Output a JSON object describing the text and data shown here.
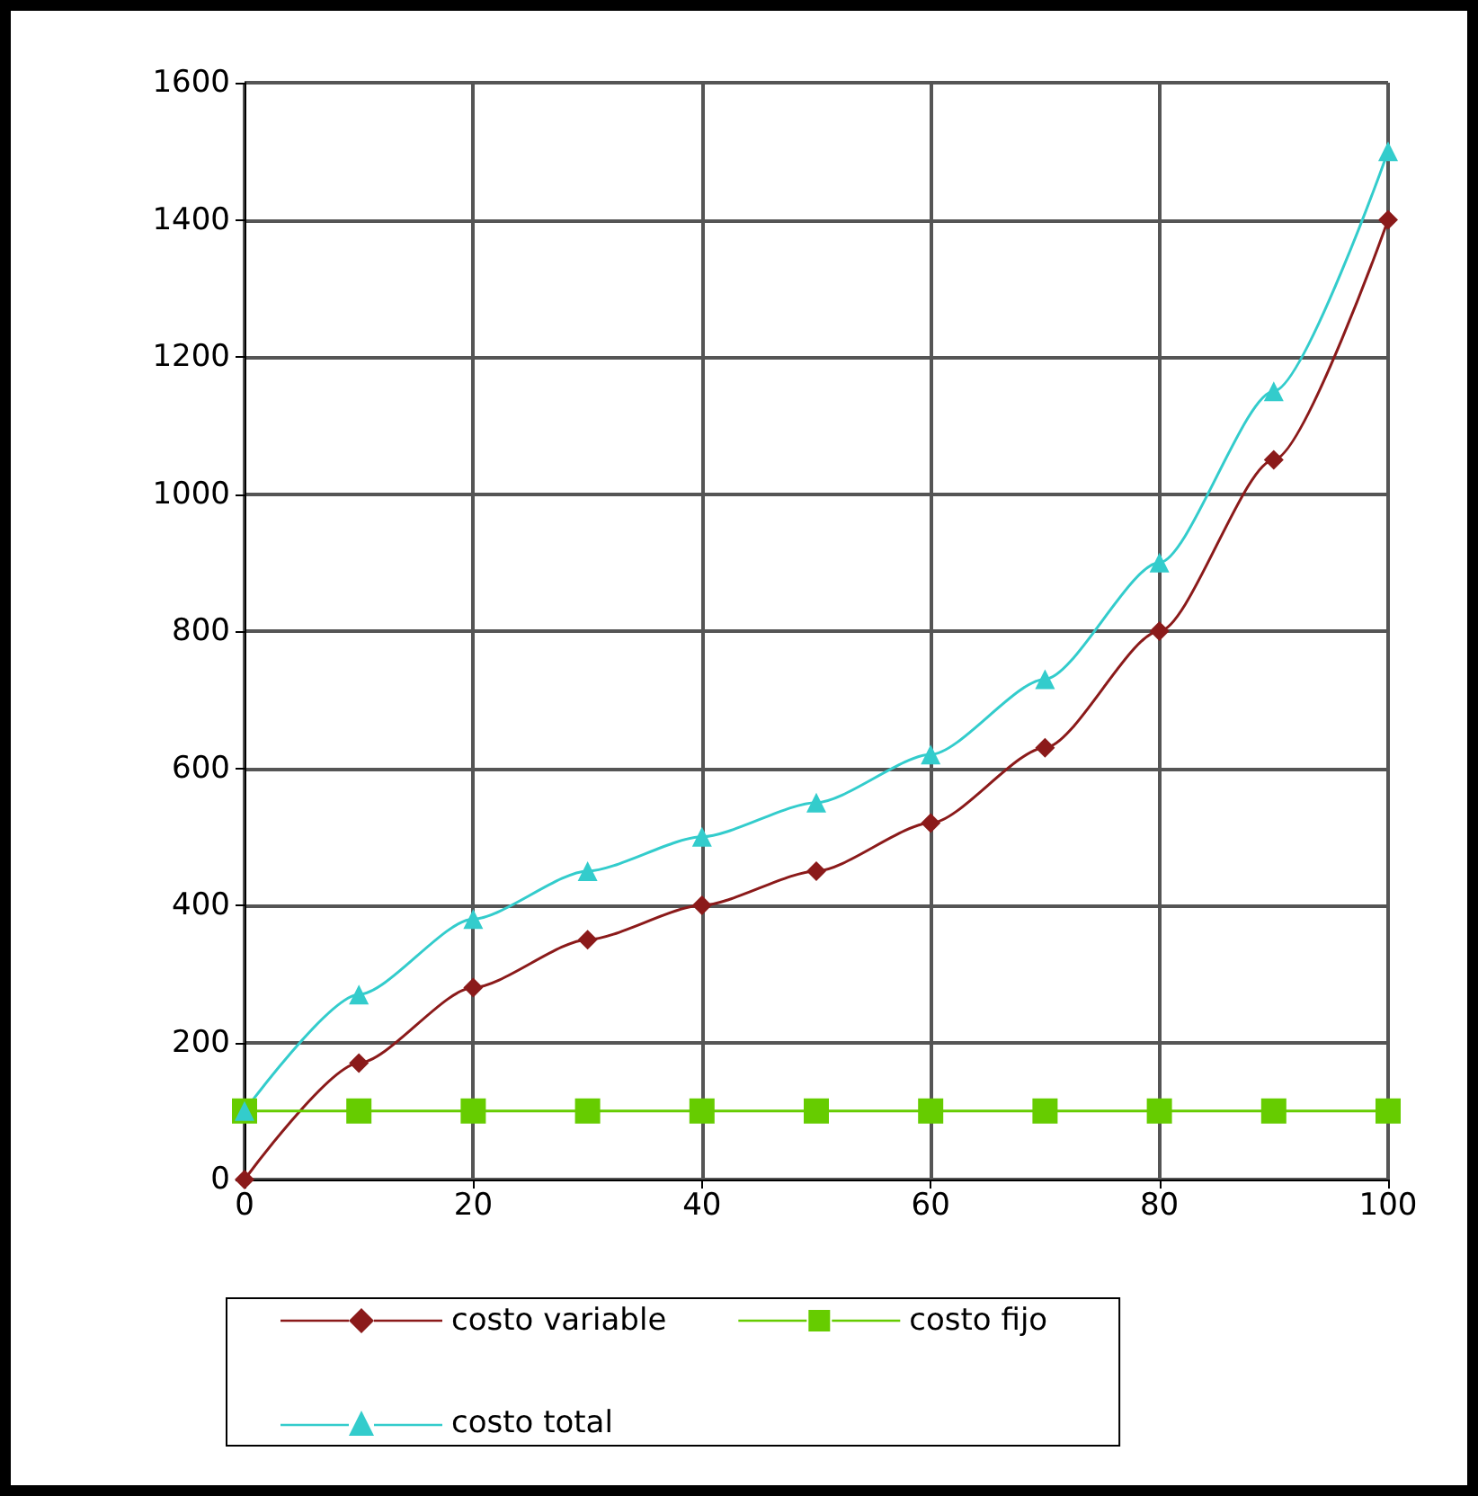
{
  "chart_data": {
    "type": "line",
    "x": [
      0,
      10,
      20,
      30,
      40,
      50,
      60,
      70,
      80,
      90,
      100
    ],
    "series": [
      {
        "name": "costo variable",
        "color": "#8b1a1a",
        "marker": "diamond",
        "values": [
          0,
          170,
          280,
          350,
          400,
          450,
          520,
          630,
          800,
          1050,
          1400
        ]
      },
      {
        "name": "costo fijo",
        "color": "#66cc00",
        "marker": "square",
        "values": [
          100,
          100,
          100,
          100,
          100,
          100,
          100,
          100,
          100,
          100,
          100
        ]
      },
      {
        "name": "costo total",
        "color": "#33cccc",
        "marker": "triangle",
        "values": [
          100,
          270,
          380,
          450,
          500,
          550,
          620,
          730,
          900,
          1150,
          1500
        ]
      }
    ],
    "xlim": [
      0,
      100
    ],
    "xticks": [
      0,
      20,
      40,
      60,
      80,
      100
    ],
    "ylim": [
      0,
      1600
    ],
    "yticks": [
      0,
      200,
      400,
      600,
      800,
      1000,
      1200,
      1400,
      1600
    ],
    "grid": true,
    "legend": "bottom",
    "line_style": "solid"
  }
}
